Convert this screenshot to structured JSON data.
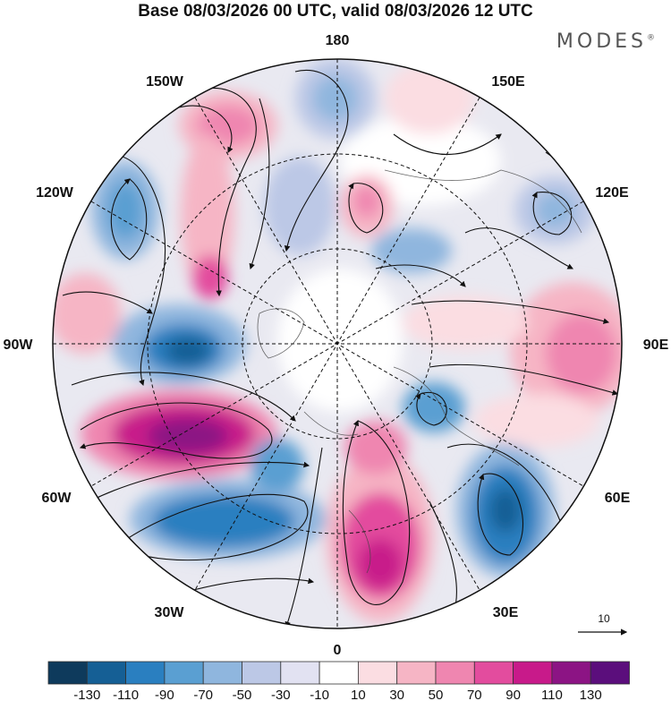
{
  "title": "Base 08/03/2026 00 UTC, valid 08/03/2026 12 UTC",
  "brand": {
    "name": "MODES",
    "mark": "®"
  },
  "map": {
    "projection": "north-polar-stereographic",
    "longitude_labels": {
      "lon_180": "180",
      "lon_150e": "150E",
      "lon_120e": "120E",
      "lon_90e": "90E",
      "lon_60e": "60E",
      "lon_30e": "30E",
      "lon_0": "0",
      "lon_30w": "30W",
      "lon_60w": "60W",
      "lon_90w": "90W",
      "lon_120w": "120W",
      "lon_150w": "150W"
    },
    "vector_scale_label": "10"
  },
  "colorbar": {
    "colors": [
      "#0e3a5c",
      "#155f95",
      "#2a7fc0",
      "#5a9fd2",
      "#8fb6de",
      "#bcc8e6",
      "#e2e2f2",
      "#ffffff",
      "#fbdde2",
      "#f6b5c5",
      "#ef86b0",
      "#e34c9e",
      "#c81a8a",
      "#8c1484",
      "#5b0e7c"
    ],
    "ticks": [
      "-130",
      "-110",
      "-90",
      "-70",
      "-50",
      "-30",
      "-10",
      "10",
      "30",
      "50",
      "70",
      "90",
      "110",
      "130"
    ]
  }
}
